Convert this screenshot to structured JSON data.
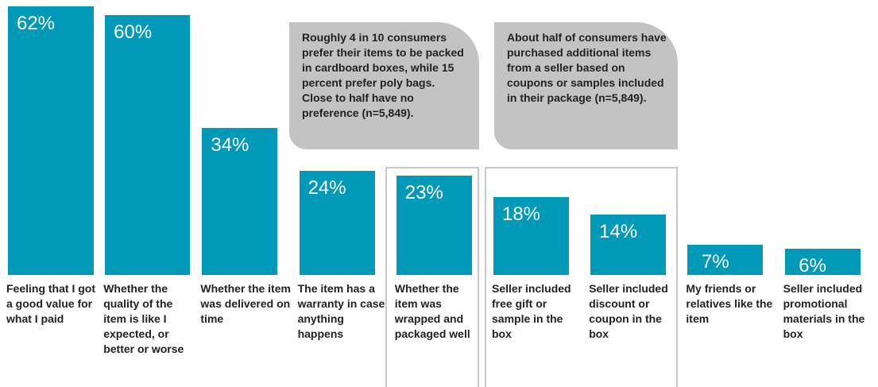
{
  "chart_data": {
    "type": "bar",
    "categories": [
      "Feeling that I got a good value for what I paid",
      "Whether the quality of the item is like I expected, or better or worse",
      "Whether the item was delivered on time",
      "The item has a warranty in case anything happens",
      "Whether the item was wrapped and packaged well",
      "Seller included free gift or sample in the box",
      "Seller included discount or coupon in the box",
      "My friends or relatives like the item",
      "Seller included promotional materials in the box"
    ],
    "values": [
      62,
      60,
      34,
      24,
      23,
      18,
      14,
      7,
      6
    ],
    "value_labels": [
      "62%",
      "60%",
      "34%",
      "24%",
      "23%",
      "18%",
      "14%",
      "7%",
      "6%"
    ],
    "color": "#0099b8",
    "annotations": [
      "Roughly 4 in 10 consumers prefer their items to be packed in cardboard boxes, while 15 percent prefer poly bags.  Close to half have no preference (n=5,849).",
      "About half of consumers have purchased additional items from a seller based on coupons or samples included in their package (n=5,849)."
    ]
  }
}
